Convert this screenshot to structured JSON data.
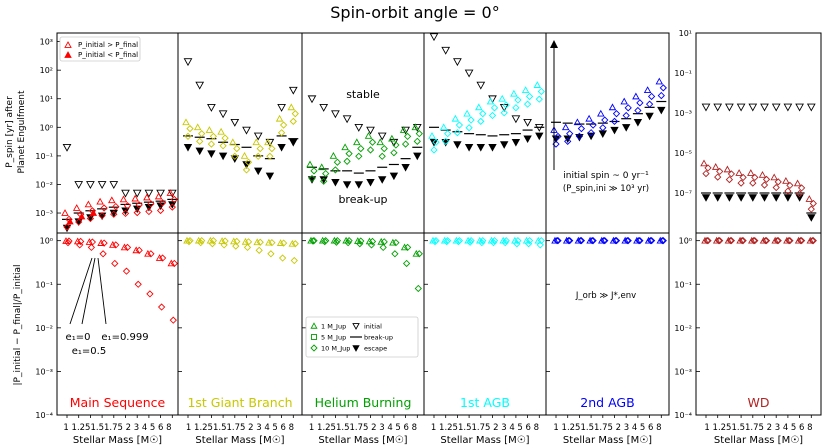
{
  "chart_data": {
    "type": "scatter",
    "title": "Spin-orbit angle = 0°",
    "xlabel": "Stellar Mass [M☉]",
    "x_ticks": [
      "1",
      "1.25",
      "1.5",
      "1.75",
      "2",
      "3",
      "4",
      "5",
      "6",
      "8"
    ],
    "x_tick_line": "1 1.251.51.75 2 3 4 5 6 8",
    "ylabel_top": [
      "P_spin [yr] after",
      "Planet Engulfment"
    ],
    "ylabel_bottom": "|P_initial − P_final|/P_initial",
    "top_y_ticks_left": [
      "10³",
      "10²",
      "10¹",
      "10⁰",
      "10⁻¹",
      "10⁻²",
      "10⁻³"
    ],
    "top_y_ticks_wd": [
      "10¹",
      "10⁻¹",
      "10⁻³",
      "10⁻⁵",
      "10⁻⁷"
    ],
    "bottom_y_ticks": [
      "10⁰",
      "10⁻¹",
      "10⁻²",
      "10⁻³",
      "10⁻⁴"
    ],
    "top_ylim": [
      0.0002,
      2000
    ],
    "wd_ylim": [
      1e-09,
      10
    ],
    "bottom_ylim": [
      0.0001,
      1.5
    ],
    "panels": [
      {
        "name": "Main Sequence",
        "color": "#ff0000",
        "initial": [
          0.2,
          0.01,
          0.01,
          0.01,
          0.01,
          0.005,
          0.005,
          0.005,
          0.005,
          0.005
        ],
        "breakup": [
          0.0006,
          0.001,
          0.0012,
          0.0014,
          0.0016,
          0.002,
          0.0022,
          0.0024,
          0.0026,
          0.003
        ],
        "escape": [
          0.0003,
          0.0005,
          0.0007,
          0.0008,
          0.001,
          0.0012,
          0.0014,
          0.0016,
          0.0018,
          0.002
        ],
        "final_top": [
          0.001,
          0.0015,
          0.002,
          0.0025,
          0.0028,
          0.003,
          0.0032,
          0.0035,
          0.0038,
          0.005
        ],
        "ratio_top": [
          0.98,
          0.96,
          0.93,
          0.88,
          0.8,
          0.7,
          0.6,
          0.5,
          0.4,
          0.3
        ],
        "ratio_bottom": [
          0.9,
          0.8,
          0.7,
          0.5,
          0.3,
          0.2,
          0.1,
          0.06,
          0.03,
          0.015
        ]
      },
      {
        "name": "1st Giant Branch",
        "color": "#c8c800",
        "initial": [
          200,
          30,
          5,
          3,
          1.5,
          0.8,
          0.5,
          0.3,
          5,
          20
        ],
        "breakup": [
          0.5,
          0.45,
          0.4,
          0.3,
          0.25,
          0.2,
          0.1,
          0.08,
          0.5,
          0.4
        ],
        "escape": [
          0.2,
          0.15,
          0.12,
          0.1,
          0.08,
          0.05,
          0.03,
          0.02,
          0.2,
          0.3
        ],
        "final_top": [
          1.5,
          1,
          0.8,
          0.7,
          0.3,
          0.1,
          0.3,
          0.3,
          2,
          5
        ],
        "ratio_top": [
          1,
          1,
          1,
          0.98,
          0.96,
          0.94,
          0.92,
          0.9,
          0.88,
          0.85
        ],
        "ratio_bottom": [
          0.95,
          0.9,
          0.85,
          0.8,
          0.75,
          0.7,
          0.6,
          0.5,
          0.4,
          0.35
        ]
      },
      {
        "name": "Helium Burning",
        "color": "#00a000",
        "initial": [
          10,
          5,
          3,
          2,
          1,
          0.8,
          0.5,
          0.3,
          0.8,
          1
        ],
        "breakup": [
          0.04,
          0.035,
          0.03,
          0.03,
          0.025,
          0.03,
          0.04,
          0.05,
          0.08,
          0.2
        ],
        "escape": [
          0.015,
          0.015,
          0.012,
          0.01,
          0.01,
          0.012,
          0.015,
          0.02,
          0.04,
          0.1
        ],
        "final_top": [
          0.05,
          0.04,
          0.1,
          0.2,
          0.3,
          0.5,
          0.3,
          0.4,
          0.8,
          1
        ],
        "ratio_top": [
          1,
          1,
          1,
          1,
          0.98,
          0.96,
          0.94,
          0.9,
          0.7,
          0.5
        ],
        "ratio_bottom": [
          0.98,
          0.95,
          0.92,
          0.9,
          0.85,
          0.8,
          0.7,
          0.5,
          0.3,
          0.08
        ]
      },
      {
        "name": "1st AGB",
        "color": "#00ffff",
        "initial": [
          1500,
          500,
          200,
          80,
          30,
          10,
          5,
          2,
          1.5,
          1
        ],
        "breakup": [
          1,
          0.8,
          0.7,
          0.6,
          0.55,
          0.5,
          0.55,
          0.6,
          0.8,
          1
        ],
        "escape": [
          0.3,
          0.3,
          0.25,
          0.2,
          0.2,
          0.2,
          0.25,
          0.3,
          0.4,
          0.5
        ],
        "final_top": [
          0.5,
          1,
          2,
          3,
          5,
          8,
          10,
          15,
          20,
          30
        ],
        "ratio_top": [
          1,
          1,
          1,
          1,
          1,
          1,
          1,
          1,
          1,
          1
        ],
        "ratio_bottom": [
          0.95,
          0.95,
          0.95,
          0.92,
          0.9,
          0.9,
          0.9,
          0.85,
          0.85,
          0.8
        ]
      },
      {
        "name": "2nd AGB",
        "color": "#0000ff",
        "annotation_spin": "initial spin ~ 0 yr⁻¹",
        "annotation_spin_sub": "(P_spin,ini ≫ 10³ yr)",
        "annotation_j": "J_orb ≫ J*,env",
        "breakup": [
          1.5,
          1.4,
          1.3,
          1.3,
          1.4,
          1.6,
          2,
          3,
          5,
          8
        ],
        "escape": [
          0.4,
          0.4,
          0.45,
          0.5,
          0.6,
          0.8,
          1,
          1.5,
          2.5,
          4
        ],
        "final_top": [
          0.8,
          1,
          1.5,
          2,
          3,
          5,
          8,
          12,
          20,
          40
        ],
        "ratio_top": [
          1,
          1,
          1,
          1,
          1,
          1,
          1,
          1,
          1,
          1
        ],
        "ratio_bottom": [
          1,
          1,
          1,
          1,
          1,
          1,
          1,
          1,
          1,
          1
        ]
      },
      {
        "name": "WD",
        "color": "#b22222",
        "initial": [
          0.002,
          0.002,
          0.002,
          0.002,
          0.002,
          0.002,
          0.002,
          0.002,
          0.002,
          0.002
        ],
        "breakup": [
          1e-07,
          1e-07,
          1e-07,
          1e-07,
          1e-07,
          1e-07,
          1e-07,
          1e-07,
          1e-07,
          1e-08
        ],
        "escape": [
          6e-08,
          6e-08,
          6e-08,
          6e-08,
          6e-08,
          6e-08,
          6e-08,
          6e-08,
          6e-08,
          6e-09
        ],
        "final_top": [
          3e-06,
          2e-06,
          1.5e-06,
          1e-06,
          1e-06,
          8e-07,
          6e-07,
          4e-07,
          3e-07,
          5e-08
        ],
        "ratio_top": [
          1,
          1,
          1,
          1,
          1,
          1,
          1,
          1,
          1,
          1
        ],
        "ratio_bottom": [
          1,
          1,
          1,
          1,
          1,
          1,
          1,
          1,
          1,
          1
        ]
      }
    ],
    "text_labels": {
      "stable": "stable",
      "breakup": "break-up"
    },
    "annotations_ms": {
      "e0": "e₁=0",
      "e05": "e₁=0.5",
      "e999": "e₁=0.999"
    },
    "legend_top": [
      {
        "marker": "open-triangle",
        "label": "P_initial > P_final"
      },
      {
        "marker": "filled-triangle",
        "label": "P_initial < P_final"
      }
    ],
    "legend_bottom": [
      {
        "marker": "triangle",
        "label": "1 M_Jup"
      },
      {
        "marker": "square",
        "label": "5 M_Jup"
      },
      {
        "marker": "diamond",
        "label": "10 M_Jup"
      },
      {
        "marker": "open-down-triangle",
        "label": "initial"
      },
      {
        "marker": "line",
        "label": "break-up"
      },
      {
        "marker": "filled-down-triangle",
        "label": "escape"
      }
    ]
  }
}
